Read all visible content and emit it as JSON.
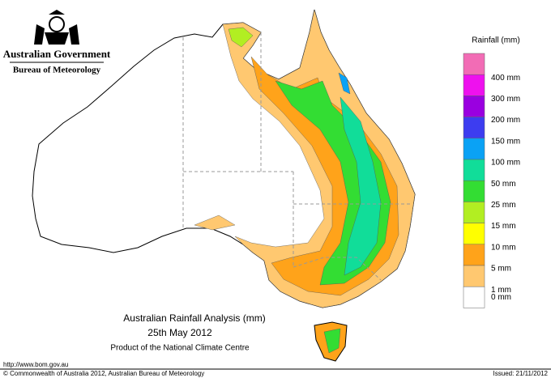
{
  "header": {
    "government": "Australian Government",
    "bureau": "Bureau of Meteorology"
  },
  "legend": {
    "title": "Rainfall (mm)",
    "colors": [
      "#f26cb5",
      "#ee11ee",
      "#9a00e0",
      "#3d3df0",
      "#0aa2f5",
      "#11dd99",
      "#33dd33",
      "#b2ee22",
      "#ffff00",
      "#ffa31a",
      "#ffc870",
      "#ffffff"
    ],
    "labels": [
      "400 mm",
      "300 mm",
      "200 mm",
      "150 mm",
      "100 mm",
      "50 mm",
      "25 mm",
      "15 mm",
      "10 mm",
      "5 mm",
      "1 mm",
      "0 mm"
    ]
  },
  "title": {
    "line1": "Australian Rainfall Analysis (mm)",
    "line2": "25th May 2012",
    "line3": "Product of the National Climate Centre"
  },
  "footer": {
    "url": "http://www.bom.gov.au",
    "copyright": "© Commonwealth of Australia 2012, Australian Bureau of Meteorology",
    "issued": "Issued: 21/11/2012"
  }
}
